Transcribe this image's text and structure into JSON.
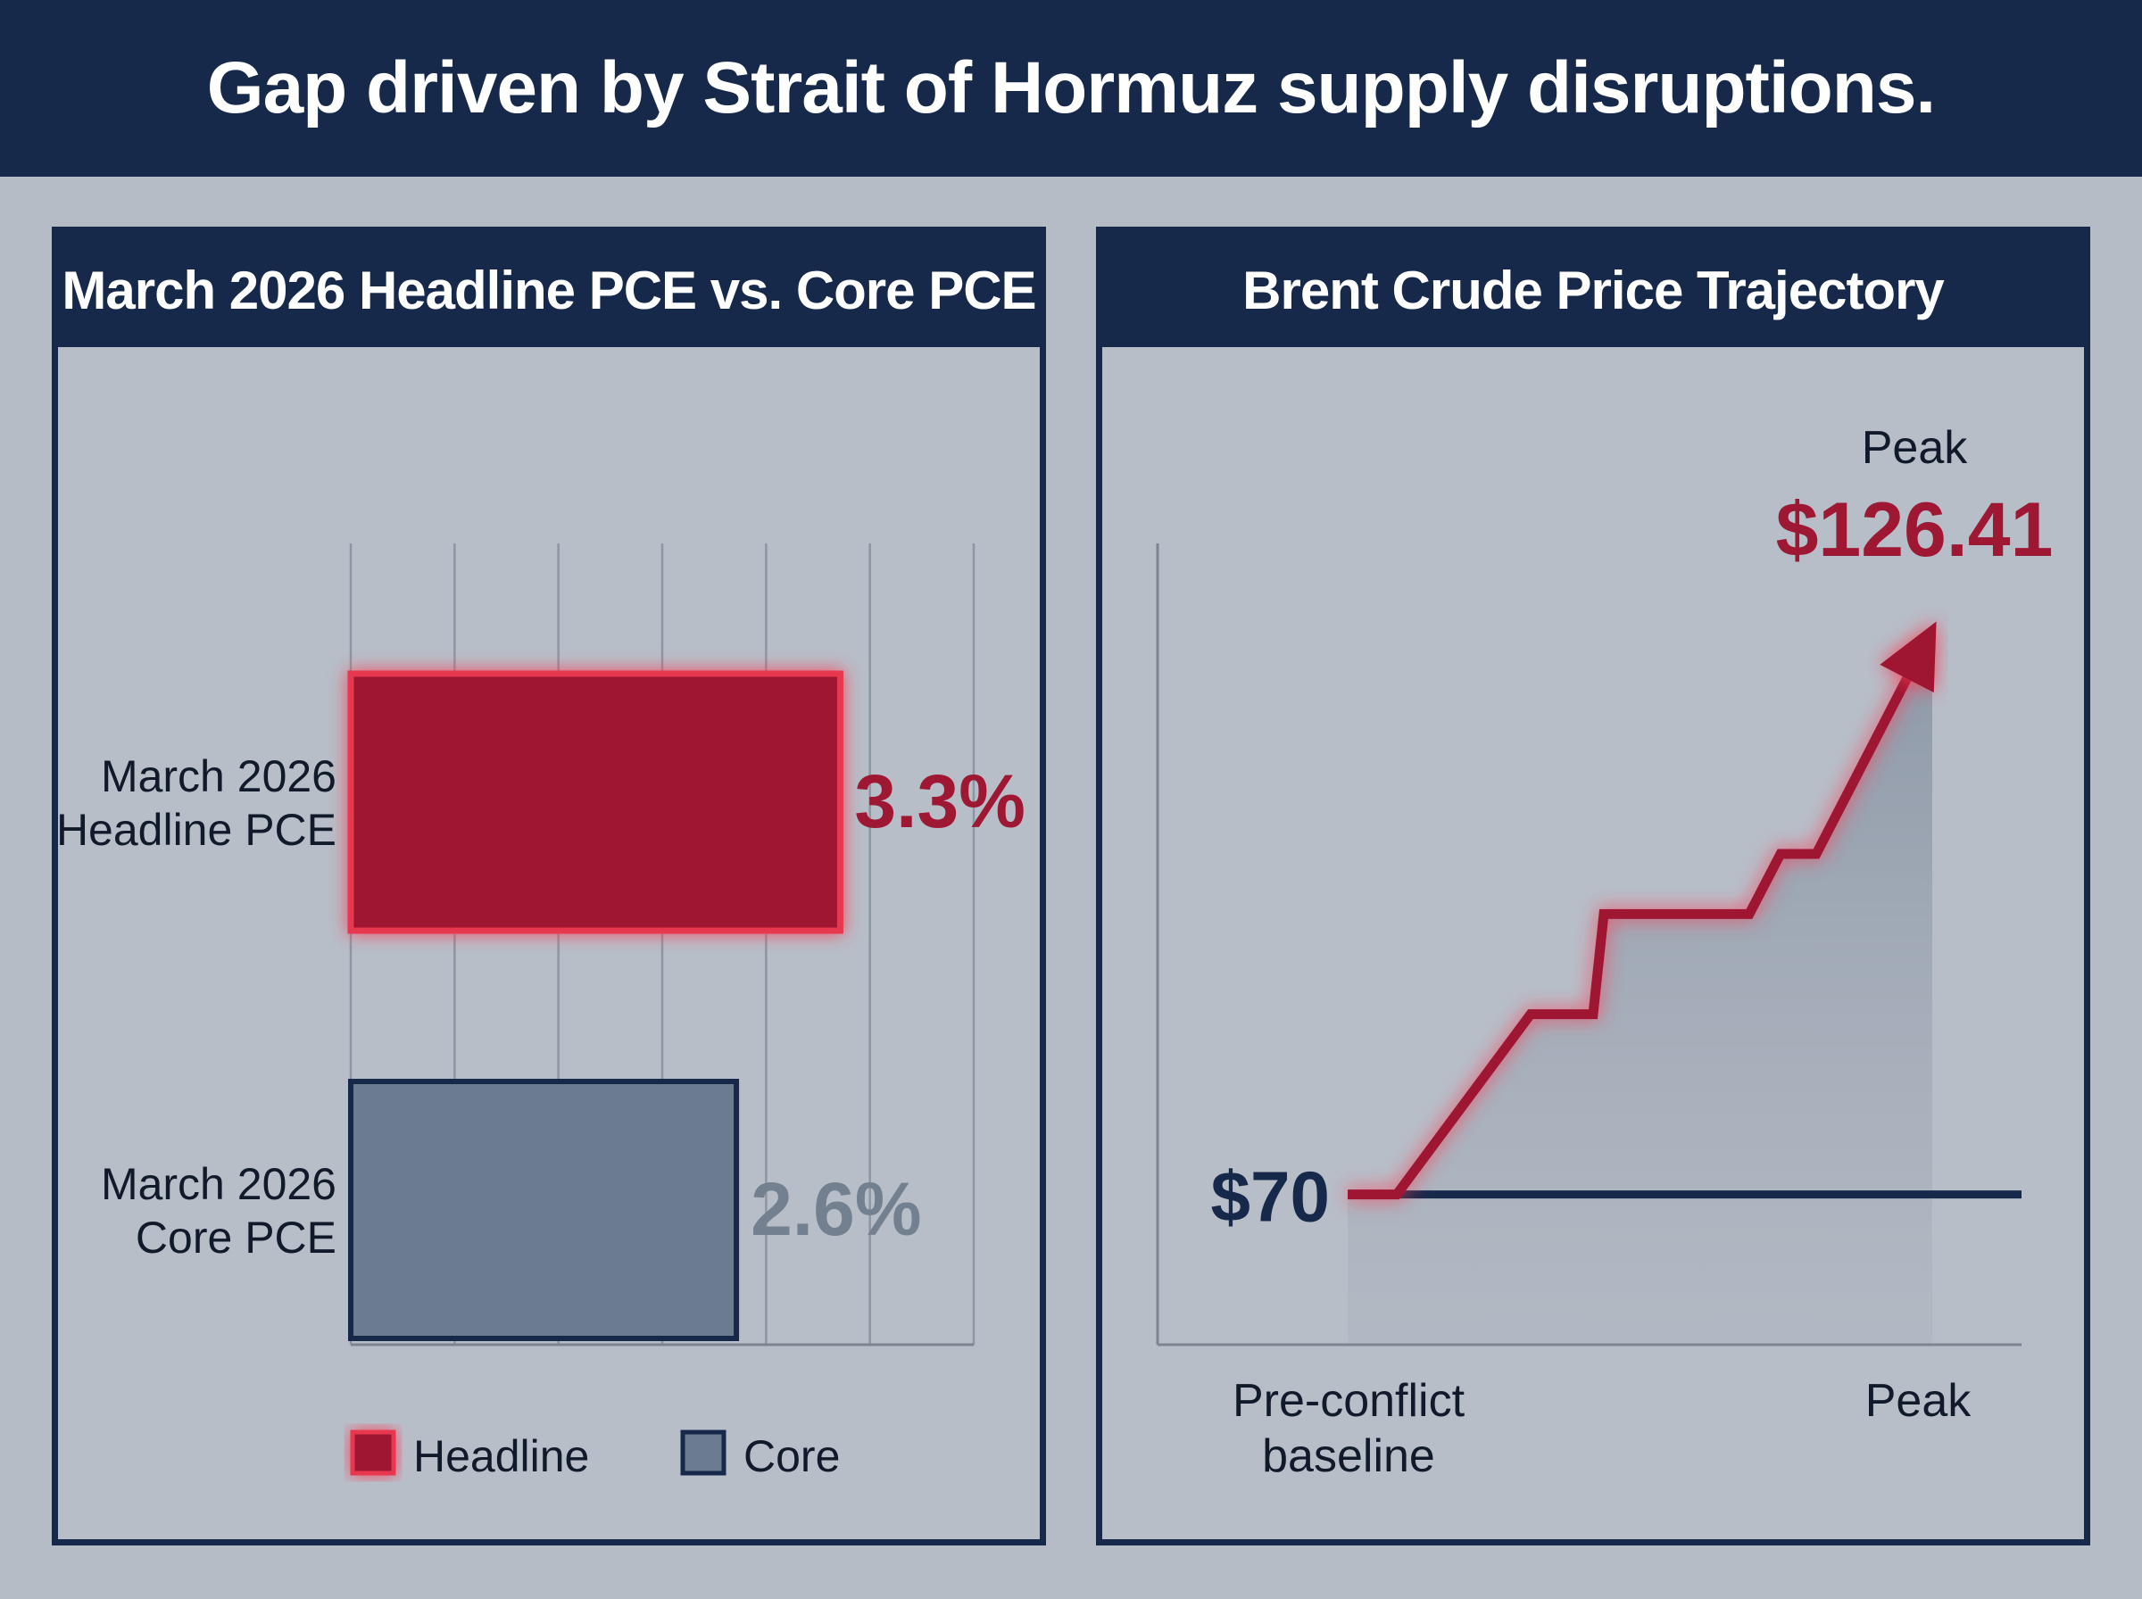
{
  "title": "Gap driven by Strait of Hormuz supply disruptions.",
  "colors": {
    "navy": "#17294b",
    "headline_red": "#9e1733",
    "headline_glow": "#ff3a52",
    "core_slate": "#6b7b90",
    "core_label": "#73808f",
    "background": "#b5bcc6"
  },
  "chart_data": [
    {
      "type": "bar",
      "orientation": "horizontal",
      "title": "March 2026 Headline PCE vs. Core PCE",
      "categories": [
        "March 2026\nHeadline PCE",
        "March 2026\nCore PCE"
      ],
      "values": [
        3.3,
        2.6
      ],
      "value_labels": [
        "3.3%",
        "2.6%"
      ],
      "series_colors": [
        "#9e1733",
        "#6b7b90"
      ],
      "xlim": [
        0,
        4.2
      ],
      "grid": true,
      "legend": {
        "placement": "bottom",
        "items": [
          {
            "label": "Headline",
            "color": "#9e1733"
          },
          {
            "label": "Core",
            "color": "#6b7b90"
          }
        ]
      }
    },
    {
      "type": "line",
      "title": "Brent Crude Price Trajectory",
      "x_labels": [
        "Pre-conflict\nbaseline",
        "Peak"
      ],
      "baseline": {
        "value": 70,
        "label": "$70"
      },
      "peak": {
        "value": 126.41,
        "label": "$126.41",
        "caption": "Peak"
      },
      "values": [
        70,
        70,
        88,
        88,
        98,
        98,
        104,
        104,
        126.41
      ],
      "ylim": [
        55,
        135
      ],
      "grid": false,
      "area_fill": true
    }
  ]
}
